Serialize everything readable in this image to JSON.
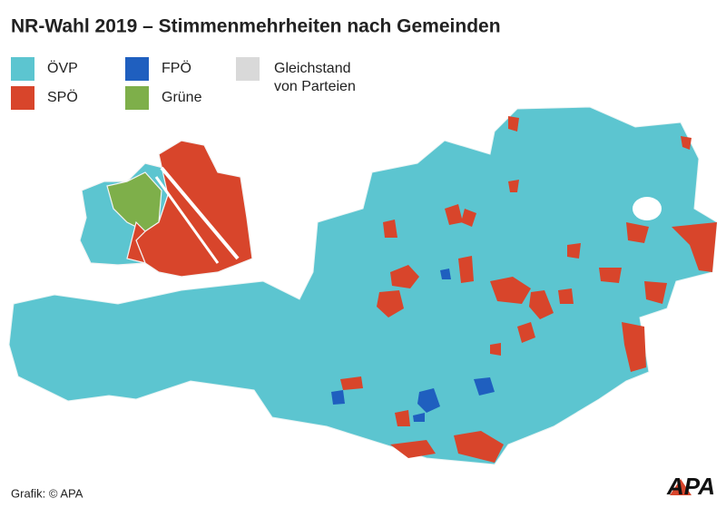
{
  "title": "NR-Wahl 2019 – Stimmenmehrheiten nach Gemeinden",
  "legend": [
    {
      "label": "ÖVP",
      "color": "#5cc5d0"
    },
    {
      "label": "SPÖ",
      "color": "#d8452b"
    },
    {
      "label": "FPÖ",
      "color": "#1f5fbf"
    },
    {
      "label": "Grüne",
      "color": "#7eaf4a"
    },
    {
      "label_lines": [
        "Gleichstand",
        "von Parteien"
      ],
      "color": "#d9d9d9"
    }
  ],
  "credit": "Grafik: © APA",
  "logo": "APA"
}
